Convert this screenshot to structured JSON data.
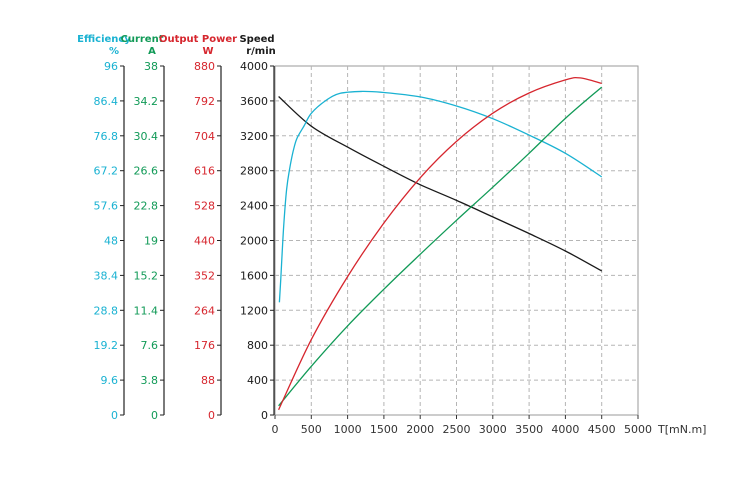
{
  "chart_data": {
    "type": "line",
    "x": {
      "label": "T[mN.m]",
      "range": [
        0,
        5000
      ],
      "ticks": [
        0,
        500,
        1000,
        1500,
        2000,
        2500,
        3000,
        3500,
        4000,
        4500,
        5000
      ]
    },
    "axes": [
      {
        "id": "efficiency",
        "title": "Efficiency",
        "unit": "%",
        "color": "#1ab2d2",
        "ticks": [
          "0",
          "9.6",
          "19.2",
          "28.8",
          "38.4",
          "48",
          "57.6",
          "67.2",
          "76.8",
          "86.4",
          "96"
        ],
        "max": 96
      },
      {
        "id": "current",
        "title": "Current",
        "unit": "A",
        "color": "#119a57",
        "ticks": [
          "0",
          "3.8",
          "7.6",
          "11.4",
          "15.2",
          "19",
          "22.8",
          "26.6",
          "30.4",
          "34.2",
          "38"
        ],
        "max": 38
      },
      {
        "id": "power",
        "title": "Output Power",
        "unit": "W",
        "color": "#d6262e",
        "ticks": [
          "0",
          "88",
          "176",
          "264",
          "352",
          "440",
          "528",
          "616",
          "704",
          "792",
          "880"
        ],
        "max": 880
      },
      {
        "id": "speed",
        "title": "Speed",
        "unit": "r/min",
        "color": "#1a1a1a",
        "ticks": [
          "0",
          "400",
          "800",
          "1200",
          "1600",
          "2000",
          "2400",
          "2800",
          "3200",
          "3600",
          "4000"
        ],
        "max": 4000
      }
    ],
    "series": [
      {
        "axis": "speed",
        "color": "#1a1a1a",
        "points": [
          [
            50,
            3650
          ],
          [
            500,
            3310
          ],
          [
            1000,
            3070
          ],
          [
            1500,
            2850
          ],
          [
            2000,
            2640
          ],
          [
            2500,
            2460
          ],
          [
            3000,
            2270
          ],
          [
            3500,
            2080
          ],
          [
            4000,
            1880
          ],
          [
            4500,
            1650
          ]
        ]
      },
      {
        "axis": "efficiency",
        "color": "#1ab2d2",
        "points": [
          [
            60,
            31
          ],
          [
            80,
            37.5
          ],
          [
            120,
            52
          ],
          [
            160,
            62
          ],
          [
            200,
            67.5
          ],
          [
            250,
            72.5
          ],
          [
            300,
            76
          ],
          [
            400,
            79.5
          ],
          [
            500,
            83
          ],
          [
            700,
            86.5
          ],
          [
            900,
            88.5
          ],
          [
            1200,
            89
          ],
          [
            1500,
            88.7
          ],
          [
            2000,
            87.5
          ],
          [
            2500,
            85
          ],
          [
            3000,
            81.5
          ],
          [
            3500,
            77
          ],
          [
            4000,
            72
          ],
          [
            4500,
            65.5
          ]
        ]
      },
      {
        "axis": "current",
        "color": "#119a57",
        "points": [
          [
            50,
            1
          ],
          [
            500,
            5.3
          ],
          [
            1000,
            9.7
          ],
          [
            1500,
            13.7
          ],
          [
            2000,
            17.5
          ],
          [
            2500,
            21.2
          ],
          [
            3000,
            24.8
          ],
          [
            3500,
            28.5
          ],
          [
            4000,
            32.3
          ],
          [
            4500,
            35.7
          ]
        ]
      },
      {
        "axis": "power",
        "color": "#d6262e",
        "points": [
          [
            50,
            13
          ],
          [
            500,
            190
          ],
          [
            1000,
            349
          ],
          [
            1500,
            484
          ],
          [
            2000,
            598
          ],
          [
            2500,
            690
          ],
          [
            3000,
            761
          ],
          [
            3500,
            812
          ],
          [
            4000,
            845
          ],
          [
            4200,
            850
          ],
          [
            4500,
            836
          ]
        ]
      }
    ]
  }
}
